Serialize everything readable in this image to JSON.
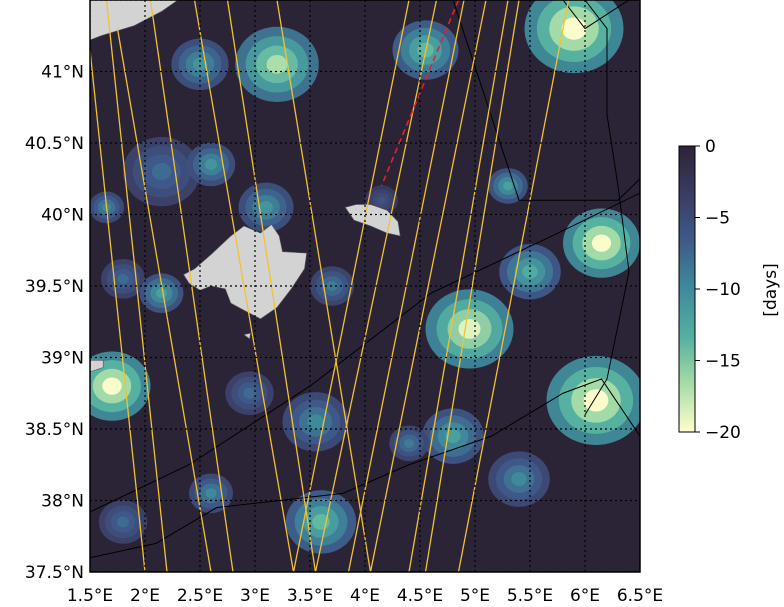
{
  "map": {
    "lon_range": [
      1.5,
      6.5
    ],
    "lat_range": [
      37.5,
      41.5
    ],
    "xtick_labels": [
      "1.5°E",
      "2°E",
      "2.5°E",
      "3°E",
      "3.5°E",
      "4°E",
      "4.5°E",
      "5°E",
      "5.5°E",
      "6°E",
      "6.5°E"
    ],
    "ytick_labels": [
      "37.5°N",
      "38°N",
      "38.5°N",
      "39°N",
      "39.5°N",
      "40°N",
      "40.5°N",
      "41°N"
    ],
    "gridlines": true,
    "background_color": "#2b2436",
    "land_color": "#d3d3d3",
    "track_color": "#f2c230",
    "highlight_track_color": "#e8202a",
    "boundary_color": "#000000",
    "blobs": [
      {
        "lon": 2.5,
        "lat": 41.05,
        "r": 0.26,
        "level": 0.55
      },
      {
        "lon": 3.2,
        "lat": 41.05,
        "r": 0.38,
        "level": 0.85
      },
      {
        "lon": 4.55,
        "lat": 41.15,
        "r": 0.3,
        "level": 0.7
      },
      {
        "lon": 5.9,
        "lat": 41.3,
        "r": 0.45,
        "level": 1.0
      },
      {
        "lon": 2.15,
        "lat": 40.3,
        "r": 0.35,
        "level": 0.4
      },
      {
        "lon": 2.6,
        "lat": 40.35,
        "r": 0.22,
        "level": 0.55
      },
      {
        "lon": 3.1,
        "lat": 40.05,
        "r": 0.25,
        "level": 0.55
      },
      {
        "lon": 4.15,
        "lat": 40.1,
        "r": 0.15,
        "level": 0.3
      },
      {
        "lon": 5.3,
        "lat": 40.2,
        "r": 0.18,
        "level": 0.6
      },
      {
        "lon": 1.65,
        "lat": 40.05,
        "r": 0.16,
        "level": 0.5
      },
      {
        "lon": 1.8,
        "lat": 39.55,
        "r": 0.2,
        "level": 0.4
      },
      {
        "lon": 2.15,
        "lat": 39.45,
        "r": 0.2,
        "level": 0.6
      },
      {
        "lon": 3.7,
        "lat": 39.5,
        "r": 0.2,
        "level": 0.45
      },
      {
        "lon": 4.95,
        "lat": 39.2,
        "r": 0.4,
        "level": 0.95
      },
      {
        "lon": 5.5,
        "lat": 39.6,
        "r": 0.28,
        "level": 0.65
      },
      {
        "lon": 6.15,
        "lat": 39.8,
        "r": 0.35,
        "level": 1.0
      },
      {
        "lon": 1.7,
        "lat": 38.8,
        "r": 0.35,
        "level": 1.0
      },
      {
        "lon": 2.95,
        "lat": 38.75,
        "r": 0.22,
        "level": 0.4
      },
      {
        "lon": 3.55,
        "lat": 38.55,
        "r": 0.3,
        "level": 0.5
      },
      {
        "lon": 4.8,
        "lat": 38.45,
        "r": 0.28,
        "level": 0.6
      },
      {
        "lon": 6.1,
        "lat": 38.7,
        "r": 0.45,
        "level": 1.0
      },
      {
        "lon": 2.6,
        "lat": 38.05,
        "r": 0.2,
        "level": 0.5
      },
      {
        "lon": 3.6,
        "lat": 37.85,
        "r": 0.32,
        "level": 0.7
      },
      {
        "lon": 4.4,
        "lat": 38.4,
        "r": 0.18,
        "level": 0.45
      },
      {
        "lon": 5.4,
        "lat": 38.15,
        "r": 0.28,
        "level": 0.5
      },
      {
        "lon": 1.8,
        "lat": 37.85,
        "r": 0.22,
        "level": 0.4
      }
    ],
    "islands": [
      {
        "name": "Mallorca",
        "outline": [
          [
            2.35,
            39.58
          ],
          [
            2.4,
            39.52
          ],
          [
            2.5,
            39.47
          ],
          [
            2.6,
            39.5
          ],
          [
            2.73,
            39.48
          ],
          [
            2.78,
            39.38
          ],
          [
            2.9,
            39.33
          ],
          [
            3.05,
            39.27
          ],
          [
            3.2,
            39.35
          ],
          [
            3.33,
            39.48
          ],
          [
            3.45,
            39.62
          ],
          [
            3.47,
            39.73
          ],
          [
            3.25,
            39.74
          ],
          [
            3.22,
            39.85
          ],
          [
            3.15,
            39.93
          ],
          [
            3.05,
            39.87
          ],
          [
            2.9,
            39.92
          ],
          [
            2.78,
            39.85
          ],
          [
            2.6,
            39.72
          ],
          [
            2.45,
            39.62
          ]
        ]
      },
      {
        "name": "Menorca",
        "outline": [
          [
            3.82,
            40.05
          ],
          [
            3.9,
            39.96
          ],
          [
            4.05,
            39.92
          ],
          [
            4.2,
            39.87
          ],
          [
            4.32,
            39.85
          ],
          [
            4.3,
            39.95
          ],
          [
            4.2,
            40.03
          ],
          [
            4.05,
            40.07
          ],
          [
            3.92,
            40.07
          ]
        ]
      },
      {
        "name": "Cabrera",
        "outline": [
          [
            2.9,
            39.16
          ],
          [
            2.95,
            39.13
          ],
          [
            2.96,
            39.17
          ]
        ]
      },
      {
        "name": "Ibiza",
        "outline": [
          [
            1.5,
            38.98
          ],
          [
            1.62,
            38.98
          ],
          [
            1.62,
            38.93
          ],
          [
            1.5,
            38.9
          ]
        ]
      },
      {
        "name": "Sardinia",
        "outline": [
          [
            6.5,
            39.0
          ],
          [
            6.5,
            39.2
          ]
        ]
      },
      {
        "name": "Mainland",
        "outline": [
          [
            1.5,
            41.5
          ],
          [
            2.3,
            41.5
          ],
          [
            2.15,
            41.42
          ],
          [
            1.9,
            41.32
          ],
          [
            1.6,
            41.25
          ],
          [
            1.5,
            41.22
          ]
        ]
      }
    ],
    "tracks": [
      {
        "p0": [
          1.5,
          41.15
        ],
        "p1": [
          2.0,
          37.5
        ]
      },
      {
        "p0": [
          1.65,
          41.5
        ],
        "p1": [
          2.2,
          37.5
        ]
      },
      {
        "p0": [
          1.75,
          41.3
        ],
        "p1": [
          2.6,
          37.5
        ]
      },
      {
        "p0": [
          2.05,
          41.5
        ],
        "p1": [
          2.8,
          37.5
        ]
      },
      {
        "p0": [
          2.45,
          41.5
        ],
        "p1": [
          3.35,
          37.5
        ]
      },
      {
        "p0": [
          2.75,
          41.5
        ],
        "p1": [
          3.55,
          37.5
        ]
      },
      {
        "p0": [
          3.2,
          41.5
        ],
        "p1": [
          4.05,
          37.5
        ]
      },
      {
        "p0": [
          4.4,
          41.5
        ],
        "p1": [
          3.35,
          37.5
        ]
      },
      {
        "p0": [
          4.65,
          41.5
        ],
        "p1": [
          3.55,
          37.5
        ]
      },
      {
        "p0": [
          4.9,
          41.5
        ],
        "p1": [
          3.85,
          37.5
        ]
      },
      {
        "p0": [
          5.1,
          41.5
        ],
        "p1": [
          4.05,
          37.5
        ]
      },
      {
        "p0": [
          5.3,
          41.5
        ],
        "p1": [
          4.4,
          37.5
        ]
      },
      {
        "p0": [
          5.4,
          41.5
        ],
        "p1": [
          4.55,
          37.5
        ]
      },
      {
        "p0": [
          5.85,
          41.5
        ],
        "p1": [
          4.85,
          37.5
        ]
      }
    ],
    "highlight_track": {
      "p0": [
        4.85,
        41.5
      ],
      "p1": [
        4.15,
        40.2
      ]
    },
    "boundaries": [
      [
        [
          1.5,
          37.6
        ],
        [
          2.1,
          37.7
        ],
        [
          2.65,
          37.95
        ],
        [
          3.8,
          38.05
        ],
        [
          4.4,
          38.25
        ],
        [
          5.15,
          38.45
        ],
        [
          5.8,
          38.75
        ],
        [
          6.15,
          38.85
        ],
        [
          6.5,
          38.45
        ]
      ],
      [
        [
          6.0,
          41.5
        ],
        [
          6.2,
          41.3
        ],
        [
          6.2,
          40.7
        ],
        [
          6.3,
          40.2
        ],
        [
          6.4,
          39.6
        ],
        [
          6.2,
          38.85
        ],
        [
          6.0,
          38.6
        ]
      ],
      [
        [
          4.8,
          41.5
        ],
        [
          5.1,
          40.8
        ],
        [
          5.4,
          40.1
        ],
        [
          6.3,
          40.1
        ],
        [
          6.5,
          40.25
        ]
      ],
      [
        [
          5.8,
          41.5
        ],
        [
          6.0,
          41.3
        ],
        [
          6.5,
          41.55
        ]
      ],
      [
        [
          1.5,
          37.92
        ],
        [
          2.4,
          38.25
        ],
        [
          3.5,
          38.8
        ],
        [
          4.6,
          39.45
        ],
        [
          5.7,
          39.85
        ],
        [
          6.5,
          40.15
        ]
      ]
    ]
  },
  "colorbar": {
    "label": "[days]",
    "tick_labels": [
      "0",
      "−5",
      "−10",
      "−15",
      "−20"
    ],
    "vmin": -20,
    "vmax": 0,
    "colors": [
      "#2c2338",
      "#3b3c63",
      "#3e5a8a",
      "#3f8a9c",
      "#55b1a0",
      "#a5dba8",
      "#ffffcc"
    ]
  }
}
